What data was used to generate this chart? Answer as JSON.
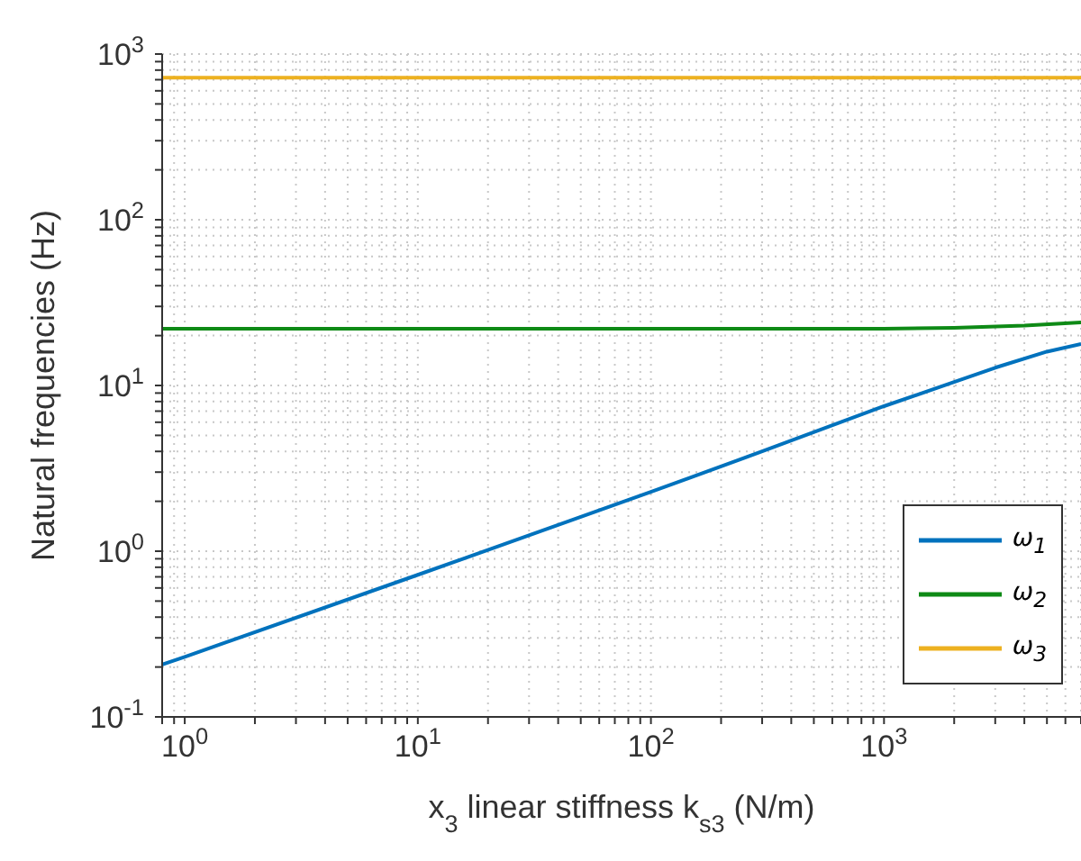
{
  "chart_data": {
    "type": "line",
    "xlabel": "x$_{3}$ linear stiffness  k$_{s3}$ (N/m)",
    "ylabel": "Natural frequencies (Hz)",
    "log": "xy",
    "grid": true,
    "legend": "bottom right",
    "line_style": "solid",
    "marker": "none",
    "xlim": [
      0.8,
      7000
    ],
    "xticks": [
      {
        "value": 0.8,
        "label": null
      },
      {
        "value": 0.9,
        "label": null
      },
      {
        "value": 1,
        "label": "10$^{0}$"
      },
      {
        "value": 2,
        "label": null
      },
      {
        "value": 3,
        "label": null
      },
      {
        "value": 4,
        "label": null
      },
      {
        "value": 5,
        "label": null
      },
      {
        "value": 6,
        "label": null
      },
      {
        "value": 7,
        "label": null
      },
      {
        "value": 8,
        "label": null
      },
      {
        "value": 9,
        "label": null
      },
      {
        "value": 10,
        "label": "10$^{1}$"
      },
      {
        "value": 20,
        "label": null
      },
      {
        "value": 30,
        "label": null
      },
      {
        "value": 40,
        "label": null
      },
      {
        "value": 50,
        "label": null
      },
      {
        "value": 60,
        "label": null
      },
      {
        "value": 70,
        "label": null
      },
      {
        "value": 80,
        "label": null
      },
      {
        "value": 90,
        "label": null
      },
      {
        "value": 100,
        "label": "10$^{2}$"
      },
      {
        "value": 200,
        "label": null
      },
      {
        "value": 300,
        "label": null
      },
      {
        "value": 400,
        "label": null
      },
      {
        "value": 500,
        "label": null
      },
      {
        "value": 600,
        "label": null
      },
      {
        "value": 700,
        "label": null
      },
      {
        "value": 800,
        "label": null
      },
      {
        "value": 900,
        "label": null
      },
      {
        "value": 1000,
        "label": "10$^{3}$"
      },
      {
        "value": 2000,
        "label": null
      },
      {
        "value": 3000,
        "label": null
      },
      {
        "value": 4000,
        "label": null
      },
      {
        "value": 5000,
        "label": null
      },
      {
        "value": 6000,
        "label": null
      },
      {
        "value": 7000,
        "label": null
      }
    ],
    "ylim": [
      0.1,
      1000
    ],
    "yticks": [
      {
        "value": 0.1,
        "label": "10$^{-1}$"
      },
      {
        "value": 0.2,
        "label": null
      },
      {
        "value": 0.3,
        "label": null
      },
      {
        "value": 0.4,
        "label": null
      },
      {
        "value": 0.5,
        "label": null
      },
      {
        "value": 0.6,
        "label": null
      },
      {
        "value": 0.7,
        "label": null
      },
      {
        "value": 0.8,
        "label": null
      },
      {
        "value": 0.9,
        "label": null
      },
      {
        "value": 1,
        "label": "10$^{0}$"
      },
      {
        "value": 2,
        "label": null
      },
      {
        "value": 3,
        "label": null
      },
      {
        "value": 4,
        "label": null
      },
      {
        "value": 5,
        "label": null
      },
      {
        "value": 6,
        "label": null
      },
      {
        "value": 7,
        "label": null
      },
      {
        "value": 8,
        "label": null
      },
      {
        "value": 9,
        "label": null
      },
      {
        "value": 10,
        "label": "10$^{1}$"
      },
      {
        "value": 20,
        "label": null
      },
      {
        "value": 30,
        "label": null
      },
      {
        "value": 40,
        "label": null
      },
      {
        "value": 50,
        "label": null
      },
      {
        "value": 60,
        "label": null
      },
      {
        "value": 70,
        "label": null
      },
      {
        "value": 80,
        "label": null
      },
      {
        "value": 90,
        "label": null
      },
      {
        "value": 100,
        "label": "10$^{2}$"
      },
      {
        "value": 200,
        "label": null
      },
      {
        "value": 300,
        "label": null
      },
      {
        "value": 400,
        "label": null
      },
      {
        "value": 500,
        "label": null
      },
      {
        "value": 600,
        "label": null
      },
      {
        "value": 700,
        "label": null
      },
      {
        "value": 800,
        "label": null
      },
      {
        "value": 900,
        "label": null
      },
      {
        "value": 1000,
        "label": "10$^{3}$"
      }
    ],
    "series": [
      {
        "name": "ω$_{1}$",
        "color": "#0072bd",
        "x": [
          0.8,
          1,
          10,
          100,
          300,
          1000,
          2000,
          3000,
          5000,
          7000
        ],
        "values": [
          0.207,
          0.23,
          0.72,
          2.28,
          4.0,
          7.5,
          10.5,
          12.8,
          16,
          17.8
        ]
      },
      {
        "name": "ω$_{2}$",
        "color": "#0e8a16",
        "x": [
          0.8,
          1000,
          2000,
          4000,
          7000
        ],
        "values": [
          22,
          22,
          22.3,
          23,
          24
        ]
      },
      {
        "name": "ω$_{3}$",
        "color": "#edb120",
        "x": [
          0.8,
          7000
        ],
        "values": [
          720,
          720
        ]
      }
    ]
  }
}
